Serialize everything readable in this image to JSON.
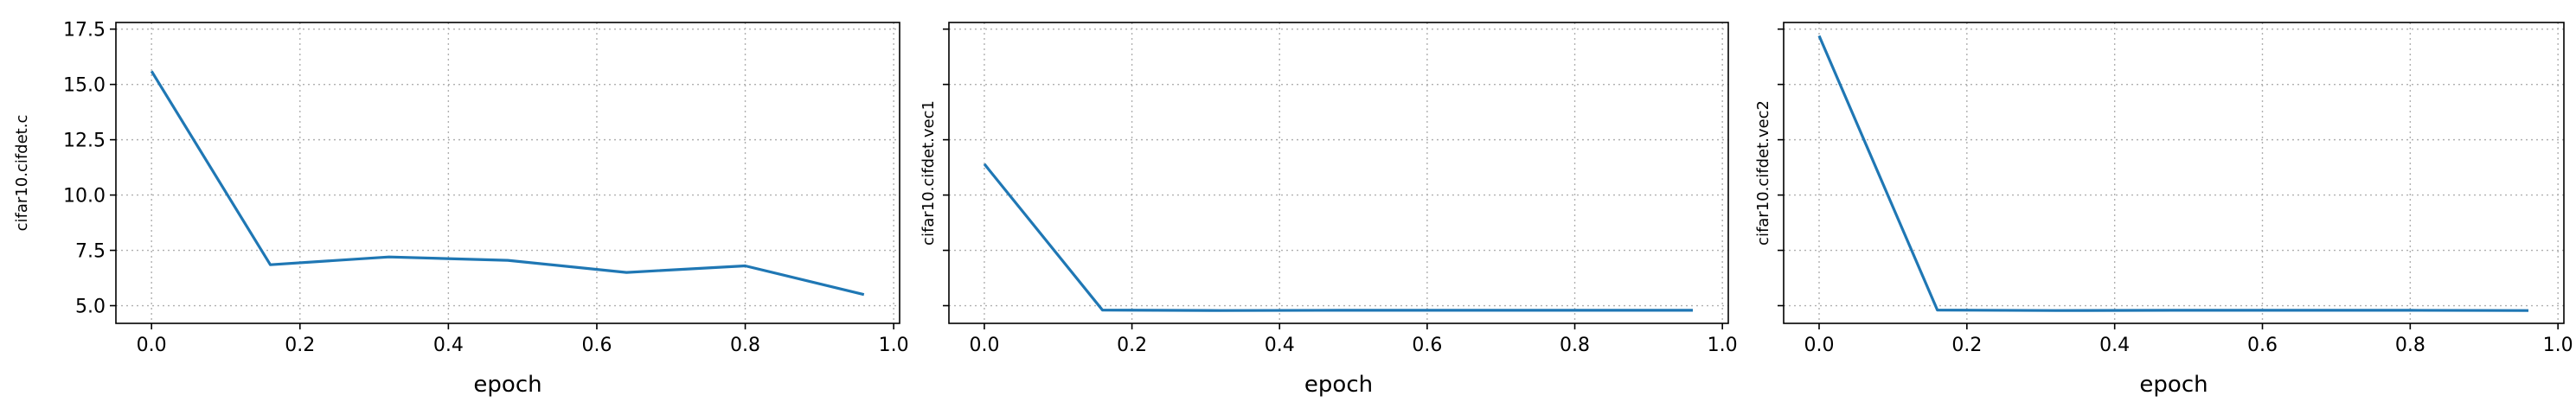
{
  "figure": {
    "background": "#ffffff",
    "line_color": "#1f77b4",
    "grid_color": "#b0b0b0"
  },
  "chart_data": [
    {
      "type": "line",
      "title": "",
      "xlabel": "epoch",
      "ylabel": "cifar10.cifdet.c",
      "xlim": [
        -0.048,
        1.008
      ],
      "ylim": [
        4.2,
        17.8
      ],
      "x": [
        0.0,
        0.16,
        0.32,
        0.48,
        0.64,
        0.8,
        0.96
      ],
      "series": [
        {
          "values": [
            15.6,
            6.85,
            7.2,
            7.05,
            6.5,
            6.8,
            5.5
          ]
        }
      ],
      "xticks": [
        0.0,
        0.2,
        0.4,
        0.6,
        0.8,
        1.0
      ],
      "xticklabels": [
        "0.0",
        "0.2",
        "0.4",
        "0.6",
        "0.8",
        "1.0"
      ],
      "yticks": [
        5.0,
        7.5,
        10.0,
        12.5,
        15.0,
        17.5
      ],
      "yticklabels": [
        "5.0",
        "7.5",
        "10.0",
        "12.5",
        "15.0",
        "17.5"
      ],
      "grid": true
    },
    {
      "type": "line",
      "title": "",
      "xlabel": "epoch",
      "ylabel": "cifar10.cifdet.vec1",
      "xlim": [
        -0.048,
        1.008
      ],
      "ylim": [
        4.2,
        17.8
      ],
      "x": [
        0.0,
        0.16,
        0.32,
        0.48,
        0.64,
        0.8,
        0.96
      ],
      "series": [
        {
          "values": [
            11.4,
            4.8,
            4.78,
            4.79,
            4.79,
            4.79,
            4.79
          ]
        }
      ],
      "xticks": [
        0.0,
        0.2,
        0.4,
        0.6,
        0.8,
        1.0
      ],
      "xticklabels": [
        "0.0",
        "0.2",
        "0.4",
        "0.6",
        "0.8",
        "1.0"
      ],
      "yticks": [
        5.0,
        7.5,
        10.0,
        12.5,
        15.0,
        17.5
      ],
      "yticklabels": [],
      "grid": true
    },
    {
      "type": "line",
      "title": "",
      "xlabel": "epoch",
      "ylabel": "cifar10.cifdet.vec2",
      "xlim": [
        -0.048,
        1.008
      ],
      "ylim": [
        4.2,
        17.8
      ],
      "x": [
        0.0,
        0.16,
        0.32,
        0.48,
        0.64,
        0.8,
        0.96
      ],
      "series": [
        {
          "values": [
            17.2,
            4.8,
            4.78,
            4.79,
            4.79,
            4.79,
            4.78
          ]
        }
      ],
      "xticks": [
        0.0,
        0.2,
        0.4,
        0.6,
        0.8,
        1.0
      ],
      "xticklabels": [
        "0.0",
        "0.2",
        "0.4",
        "0.6",
        "0.8",
        "1.0"
      ],
      "yticks": [
        5.0,
        7.5,
        10.0,
        12.5,
        15.0,
        17.5
      ],
      "yticklabels": [],
      "grid": true
    }
  ]
}
